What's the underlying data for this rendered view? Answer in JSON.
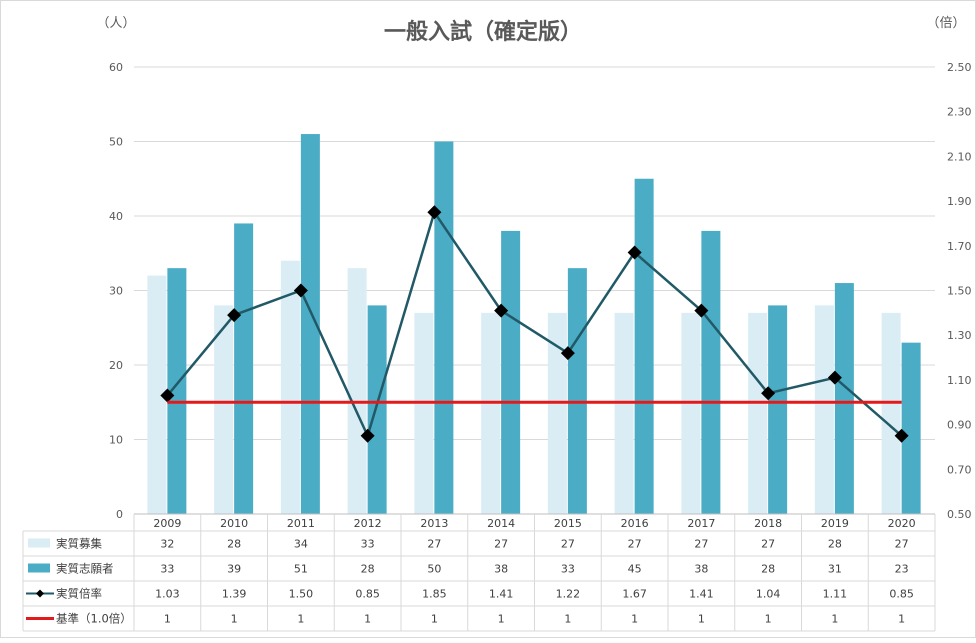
{
  "chart_data": {
    "type": "bar",
    "title": "一般入試（確定版）",
    "left_unit": "（人）",
    "right_unit": "（倍）",
    "categories": [
      "2009",
      "2010",
      "2011",
      "2012",
      "2013",
      "2014",
      "2015",
      "2016",
      "2017",
      "2018",
      "2019",
      "2020"
    ],
    "ylim_left": [
      0,
      60
    ],
    "yticks_left": [
      "0",
      "10",
      "20",
      "30",
      "40",
      "50",
      "60"
    ],
    "ylim_right": [
      0.5,
      2.5
    ],
    "yticks_right": [
      "0.50",
      "0.70",
      "0.90",
      "1.10",
      "1.30",
      "1.50",
      "1.70",
      "1.90",
      "2.10",
      "2.30",
      "2.50"
    ],
    "grid": "horizontal",
    "legend_placement": "data-table-left",
    "series": [
      {
        "name": "実質募集",
        "kind": "bar",
        "axis": "left",
        "color": "#daedf4",
        "values": [
          32,
          28,
          34,
          33,
          27,
          27,
          27,
          27,
          27,
          27,
          28,
          27
        ],
        "labels": [
          "32",
          "28",
          "34",
          "33",
          "27",
          "27",
          "27",
          "27",
          "27",
          "27",
          "28",
          "27"
        ]
      },
      {
        "name": "実質志願者",
        "kind": "bar",
        "axis": "left",
        "color": "#4bacc6",
        "values": [
          33,
          39,
          51,
          28,
          50,
          38,
          33,
          45,
          38,
          28,
          31,
          23
        ],
        "labels": [
          "33",
          "39",
          "51",
          "28",
          "50",
          "38",
          "33",
          "45",
          "38",
          "28",
          "31",
          "23"
        ]
      },
      {
        "name": "実質倍率",
        "kind": "line",
        "axis": "right",
        "color": "#215967",
        "marker": "diamond",
        "marker_color": "#000000",
        "values": [
          1.03,
          1.39,
          1.5,
          0.85,
          1.85,
          1.41,
          1.22,
          1.67,
          1.41,
          1.04,
          1.11,
          0.85
        ],
        "labels": [
          "1.03",
          "1.39",
          "1.50",
          "0.85",
          "1.85",
          "1.41",
          "1.22",
          "1.67",
          "1.41",
          "1.04",
          "1.11",
          "0.85"
        ]
      },
      {
        "name": "基準（1.0倍）",
        "kind": "line",
        "axis": "right",
        "color": "#e31a1c",
        "values": [
          1,
          1,
          1,
          1,
          1,
          1,
          1,
          1,
          1,
          1,
          1,
          1
        ],
        "labels": [
          "1",
          "1",
          "1",
          "1",
          "1",
          "1",
          "1",
          "1",
          "1",
          "1",
          "1",
          "1"
        ]
      }
    ]
  }
}
